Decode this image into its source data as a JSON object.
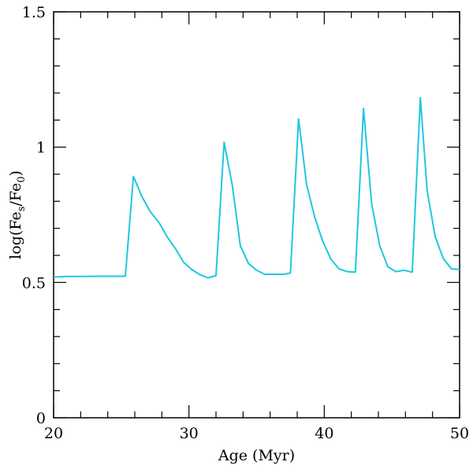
{
  "chart_data": {
    "type": "line",
    "title": "",
    "xlabel": "Age (Myr)",
    "ylabel_parts": {
      "prefix": "log(Fe",
      "sub1": "s",
      "mid": "/Fe",
      "sub2": "0",
      "suffix": ")"
    },
    "xlim": [
      20,
      50
    ],
    "ylim": [
      0,
      1.5
    ],
    "x_major_ticks": [
      20,
      30,
      40,
      50
    ],
    "x_tick_labels": [
      "20",
      "30",
      "40",
      "50"
    ],
    "y_major_ticks": [
      0,
      0.5,
      1,
      1.5
    ],
    "y_tick_labels": [
      "0",
      "0.5",
      "1",
      "1.5"
    ],
    "x_minor_step": 2,
    "y_minor_step": 0.1,
    "grid": false,
    "series": [
      {
        "name": "log(Fe_s/Fe_0)",
        "color": "#1EC8E0",
        "x": [
          20.0,
          21.0,
          22.0,
          23.0,
          24.0,
          25.3,
          25.9,
          26.5,
          27.1,
          27.8,
          28.4,
          29.0,
          29.6,
          30.2,
          30.8,
          31.4,
          32.0,
          32.6,
          33.2,
          33.8,
          34.4,
          35.0,
          35.6,
          36.4,
          37.0,
          37.5,
          38.1,
          38.7,
          39.3,
          39.9,
          40.5,
          41.1,
          41.7,
          42.3,
          42.9,
          43.5,
          44.1,
          44.7,
          45.3,
          45.9,
          46.5,
          47.1,
          47.6,
          48.2,
          48.8,
          49.4,
          50.0
        ],
        "values": [
          0.52,
          0.522,
          0.522,
          0.523,
          0.523,
          0.523,
          0.892,
          0.82,
          0.765,
          0.72,
          0.668,
          0.625,
          0.575,
          0.548,
          0.529,
          0.517,
          0.525,
          1.018,
          0.86,
          0.635,
          0.57,
          0.545,
          0.53,
          0.53,
          0.53,
          0.535,
          1.104,
          0.86,
          0.74,
          0.65,
          0.585,
          0.55,
          0.54,
          0.538,
          1.143,
          0.79,
          0.635,
          0.558,
          0.54,
          0.545,
          0.538,
          1.183,
          0.84,
          0.668,
          0.588,
          0.55,
          0.548
        ]
      }
    ]
  }
}
